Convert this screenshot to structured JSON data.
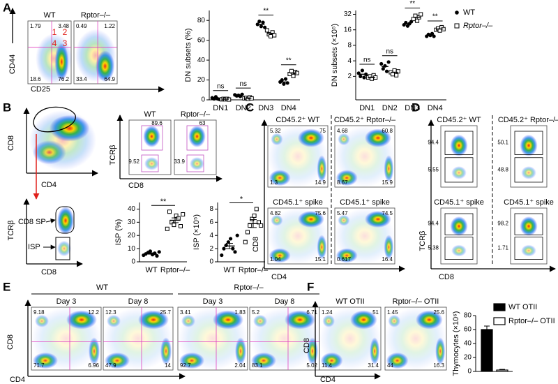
{
  "panel_labels": [
    "A",
    "B",
    "C",
    "D",
    "E",
    "F"
  ],
  "flow": {
    "A": {
      "y_axis": "CD44",
      "x_axis": "CD25",
      "gates": [
        "1",
        "2",
        "4",
        "3"
      ],
      "plots": [
        {
          "title": "WT",
          "quadrants": [
            1.79,
            3.48,
            18.6,
            76.2
          ]
        },
        {
          "title": "Rptor–/–",
          "quadrants": [
            0.49,
            1.22,
            33.4,
            64.9
          ]
        }
      ]
    },
    "B": {
      "overview": {
        "y_axis": "CD8",
        "x_axis": "CD4"
      },
      "gated": {
        "y_axis": "TCRβ",
        "x_axis": "CD8",
        "gates": [
          "CD8 SP",
          "ISP"
        ]
      },
      "plots_y_axis": "TCRβ",
      "plots_x_axis": "CD8",
      "plots": [
        {
          "title": "WT",
          "gates": [
            89.6,
            9.52
          ]
        },
        {
          "title": "Rptor–/–",
          "gates": [
            63,
            33.9
          ]
        }
      ]
    },
    "C": {
      "y_axis": "CD8",
      "x_axis": "CD4",
      "plots": [
        {
          "title": "CD45.2⁺ WT",
          "quadrants": [
            5.32,
            75,
            1.3,
            14.9
          ]
        },
        {
          "title": "CD45.2⁺ Rptor–/–",
          "quadrants": [
            4.68,
            60.8,
            8.67,
            15.9
          ]
        },
        {
          "title": "CD45.1⁺ spike",
          "quadrants": [
            4.82,
            75.6,
            1.04,
            15.1
          ]
        },
        {
          "title": "CD45.1⁺ spike",
          "quadrants": [
            5.47,
            74.5,
            0.617,
            16.4
          ]
        }
      ]
    },
    "D": {
      "y_axis": "TCRβ",
      "x_axis": "CD8",
      "plots": [
        {
          "title": "CD45.2⁺ WT",
          "gates": [
            94.4,
            5.55
          ]
        },
        {
          "title": "CD45.2⁺ Rptor–/–",
          "gates": [
            50.1,
            48.8
          ]
        },
        {
          "title": "CD45.1⁺ spike",
          "gates": [
            94.4,
            5.38
          ]
        },
        {
          "title": "CD45.1⁺ spike",
          "gates": [
            98.2,
            1.71
          ]
        }
      ]
    },
    "E": {
      "y_axis": "CD8",
      "x_axis": "CD4",
      "groups": [
        "WT",
        "Rptor–/–"
      ],
      "plots": [
        {
          "title": "Day 3",
          "quadrants": [
            9.18,
            12.2,
            71.7,
            6.96
          ]
        },
        {
          "title": "Day 8",
          "quadrants": [
            12.3,
            25.7,
            47.9,
            14
          ]
        },
        {
          "title": "Day 3",
          "quadrants": [
            3.41,
            1.83,
            92.7,
            2.04
          ]
        },
        {
          "title": "Day 8",
          "quadrants": [
            5.2,
            6.71,
            83.1,
            5.02
          ]
        }
      ]
    },
    "F": {
      "y_axis": "CD8",
      "x_axis": "CD4",
      "plots": [
        {
          "title": "WT OTII",
          "quadrants": [
            1.24,
            51,
            11.4,
            31.4
          ]
        },
        {
          "title": "Rptor–/– OTII",
          "quadrants": [
            1.45,
            25.6,
            44,
            16.3
          ]
        }
      ]
    }
  },
  "chart_data": [
    {
      "type": "dot",
      "y_label": "DN subsets (%)",
      "categories": [
        "DN1",
        "DN2",
        "DN3",
        "DN4"
      ],
      "ylim": [
        0,
        90
      ],
      "yticks": [
        0,
        20,
        40,
        60,
        80
      ],
      "significance": [
        "ns",
        "ns",
        "**",
        "**"
      ],
      "series": [
        {
          "color": "#000000",
          "marker": "filled-circle",
          "values": [
            [
              2,
              1,
              3,
              1,
              0.5
            ],
            [
              5,
              4,
              4.5,
              3.5,
              5.5
            ],
            [
              76,
              79,
              74,
              78,
              73
            ],
            [
              18,
              20,
              16,
              21,
              17
            ]
          ],
          "means": [
            1.5,
            4.5,
            76,
            18
          ]
        },
        {
          "color": "#000000",
          "marker": "open-square",
          "values": [
            [
              0.5,
              1,
              0.5,
              1,
              0.3
            ],
            [
              1.5,
              2,
              1,
              2.5,
              1.5
            ],
            [
              70,
              66,
              64,
              68,
              65
            ],
            [
              26,
              29,
              24,
              28,
              27
            ]
          ],
          "means": [
            0.7,
            1.7,
            67,
            27
          ]
        }
      ]
    },
    {
      "type": "dot",
      "y_label": "DN subsets (×10⁵)",
      "categories": [
        "DN1",
        "DN2",
        "DN3",
        "DN4"
      ],
      "log_base": 2,
      "ylim": [
        0.7,
        38
      ],
      "yticks": [
        2,
        4,
        8,
        16,
        32
      ],
      "significance": [
        "ns",
        "ns",
        "**",
        "**"
      ],
      "legend": true,
      "series": [
        {
          "name": "WT",
          "color": "#000000",
          "marker": "filled-circle",
          "values": [
            [
              2.3,
              2,
              2.6,
              1.9,
              2.2
            ],
            [
              3.5,
              2.8,
              3.2,
              2.5,
              3.8
            ],
            [
              20,
              22,
              19,
              21,
              23
            ],
            [
              12,
              13,
              12.5,
              13.5,
              12
            ]
          ],
          "means": [
            2.2,
            3.1,
            21,
            12.6
          ]
        },
        {
          "name": "Rptor–/–",
          "color": "#000000",
          "marker": "open-square",
          "values": [
            [
              1.9,
              2,
              1.8,
              2.1,
              1.9
            ],
            [
              2.4,
              2.2,
              2.6,
              2.1,
              2.5
            ],
            [
              26,
              30,
              24,
              28,
              32
            ],
            [
              16,
              17,
              15.5,
              18,
              16.5
            ]
          ],
          "means": [
            1.9,
            2.4,
            28,
            16.6
          ]
        }
      ]
    },
    {
      "type": "dot",
      "y_label": "ISP (%)",
      "categories": [
        "WT",
        "Rptor–/–"
      ],
      "ylim": [
        0,
        45
      ],
      "yticks": [
        0,
        10,
        20,
        30,
        40
      ],
      "significance": "**",
      "markers": [
        "filled-circle",
        "open-square"
      ],
      "color": "#000000",
      "values": [
        [
          5,
          6,
          7,
          8,
          5.5,
          6.5,
          4.5,
          7.5
        ],
        [
          25,
          38,
          30,
          28,
          35,
          33,
          27,
          36
        ]
      ],
      "means": [
        6.3,
        31.5
      ],
      "errors": [
        0.5,
        1.8
      ]
    },
    {
      "type": "dot",
      "y_label": "ISP (×10⁵)",
      "categories": [
        "WT",
        "Rptor–/–"
      ],
      "ylim": [
        0,
        9
      ],
      "yticks": [
        0,
        2,
        4,
        6,
        8
      ],
      "significance": "*",
      "markers": [
        "filled-circle",
        "open-square"
      ],
      "color": "#000000",
      "values": [
        [
          1,
          2,
          2.5,
          3,
          3.5,
          2,
          1.5,
          4
        ],
        [
          3,
          4.5,
          5.5,
          6.5,
          7,
          8,
          6,
          5.5
        ]
      ],
      "means": [
        2.4,
        5.8
      ],
      "errors": [
        0.4,
        0.6
      ]
    },
    {
      "type": "bar",
      "y_label": "Thymocytes (×10⁶)",
      "ylim": [
        0,
        80
      ],
      "yticks": [
        0,
        20,
        40,
        60,
        80
      ],
      "legend": true,
      "series": [
        {
          "name": "WT OTII",
          "color": "#000000",
          "values": [
            60
          ],
          "errors": [
            5
          ]
        },
        {
          "name": "Rptor–/– OTII",
          "color": "#ffffff",
          "values": [
            2
          ],
          "errors": [
            1
          ]
        }
      ]
    }
  ]
}
